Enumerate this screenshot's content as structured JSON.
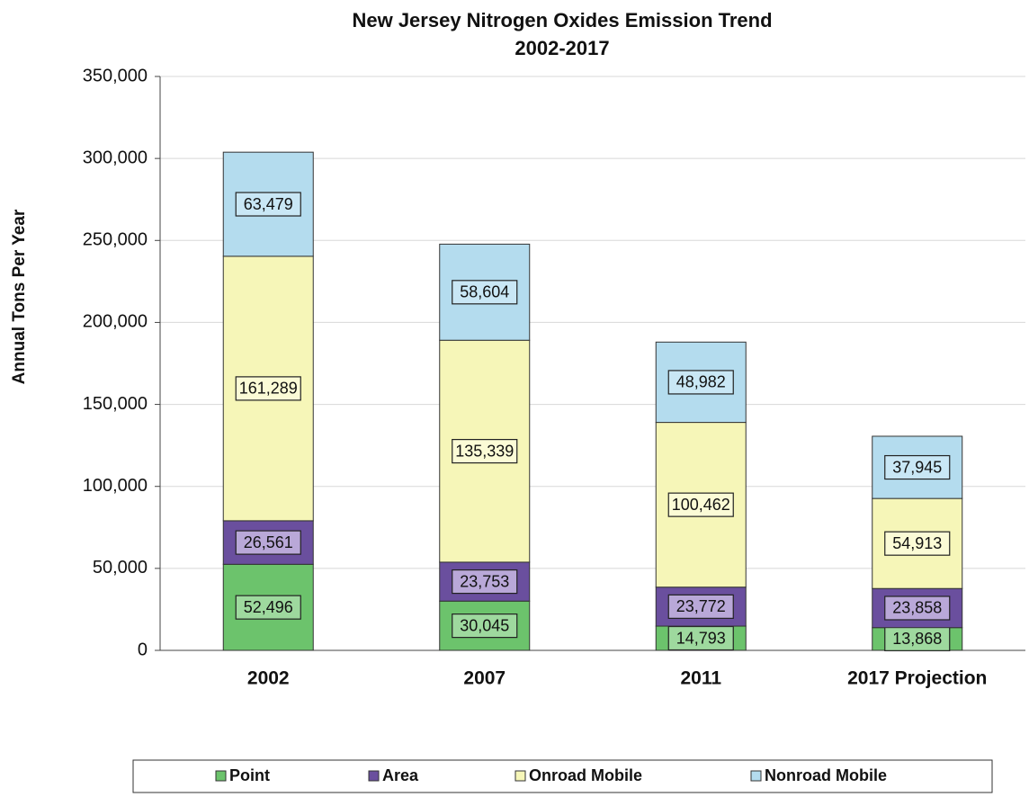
{
  "chart_data": {
    "type": "stacked_bar",
    "title": "New Jersey Nitrogen Oxides Emission Trend",
    "subtitle": "2002-2017",
    "y_label": "Annual Tons Per Year",
    "categories": [
      "2002",
      "2007",
      "2011",
      "2017 Projection"
    ],
    "series": [
      {
        "name": "Point",
        "color": "#6cc36c",
        "label_color": "#9ed99e",
        "values": [
          52496,
          30045,
          14793,
          13868
        ],
        "value_labels": [
          "52,496",
          "30,045",
          "14,793",
          "13,868"
        ]
      },
      {
        "name": "Area",
        "color": "#6a4f9e",
        "label_color": "#b9a8d8",
        "values": [
          26561,
          23753,
          23772,
          23858
        ],
        "value_labels": [
          "26,561",
          "23,753",
          "23,772",
          "23,858"
        ]
      },
      {
        "name": "Onroad Mobile",
        "color": "#f6f6b8",
        "label_color": "#fbfbd6",
        "values": [
          161289,
          135339,
          100462,
          54913
        ],
        "value_labels": [
          "161,289",
          "135,339",
          "100,462",
          "54,913"
        ]
      },
      {
        "name": "Nonroad Mobile",
        "color": "#b4dcee",
        "label_color": "#c9e7f5",
        "values": [
          63479,
          58604,
          48982,
          37945
        ],
        "value_labels": [
          "63,479",
          "58,604",
          "48,982",
          "37,945"
        ]
      }
    ],
    "ylim": [
      0,
      350000
    ],
    "yticks": [
      0,
      {
        "value": 50000,
        "label": "50,000"
      },
      {
        "value": 100000,
        "label": "100,000"
      },
      {
        "value": 150000,
        "label": "150,000"
      },
      {
        "value": 200000,
        "label": "200,000"
      },
      {
        "value": 250000,
        "label": "250,000"
      },
      {
        "value": 300000,
        "label": "300,000"
      },
      {
        "value": 350000,
        "label": "350,000"
      }
    ],
    "grid": true,
    "legend": "bottom"
  }
}
